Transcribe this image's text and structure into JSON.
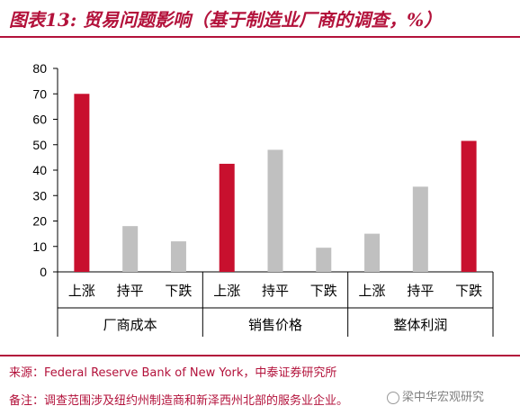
{
  "title": "图表13: 贸易问题影响（基于制造业厂商的调查，%）",
  "source": "来源：Federal Reserve Bank of New York，中泰证券研究所",
  "remark": "备注：调查范围涉及纽约州制造商和新泽西州北部的服务业企业。",
  "watermark": "梁中华宏观研究",
  "colors": {
    "accent": "#b3123b",
    "up": "#c8102e",
    "neutral": "#c0c0c0"
  },
  "chart_data": {
    "type": "bar",
    "ylim": [
      0,
      80
    ],
    "yticks": [
      0,
      10,
      20,
      30,
      40,
      50,
      60,
      70,
      80
    ],
    "groups": [
      {
        "label": "厂商成本",
        "categories": [
          "上涨",
          "持平",
          "下跌"
        ],
        "values": [
          70,
          18,
          12
        ]
      },
      {
        "label": "销售价格",
        "categories": [
          "上涨",
          "持平",
          "下跌"
        ],
        "values": [
          42.5,
          48,
          9.5
        ]
      },
      {
        "label": "整体利润",
        "categories": [
          "上涨",
          "持平",
          "下跌"
        ],
        "values": [
          15,
          33.5,
          51.5
        ]
      }
    ],
    "highlight_colors": [
      "#c8102e",
      "#c0c0c0",
      "#c0c0c0",
      "#c8102e",
      "#c0c0c0",
      "#c0c0c0",
      "#c0c0c0",
      "#c0c0c0",
      "#c8102e"
    ]
  }
}
